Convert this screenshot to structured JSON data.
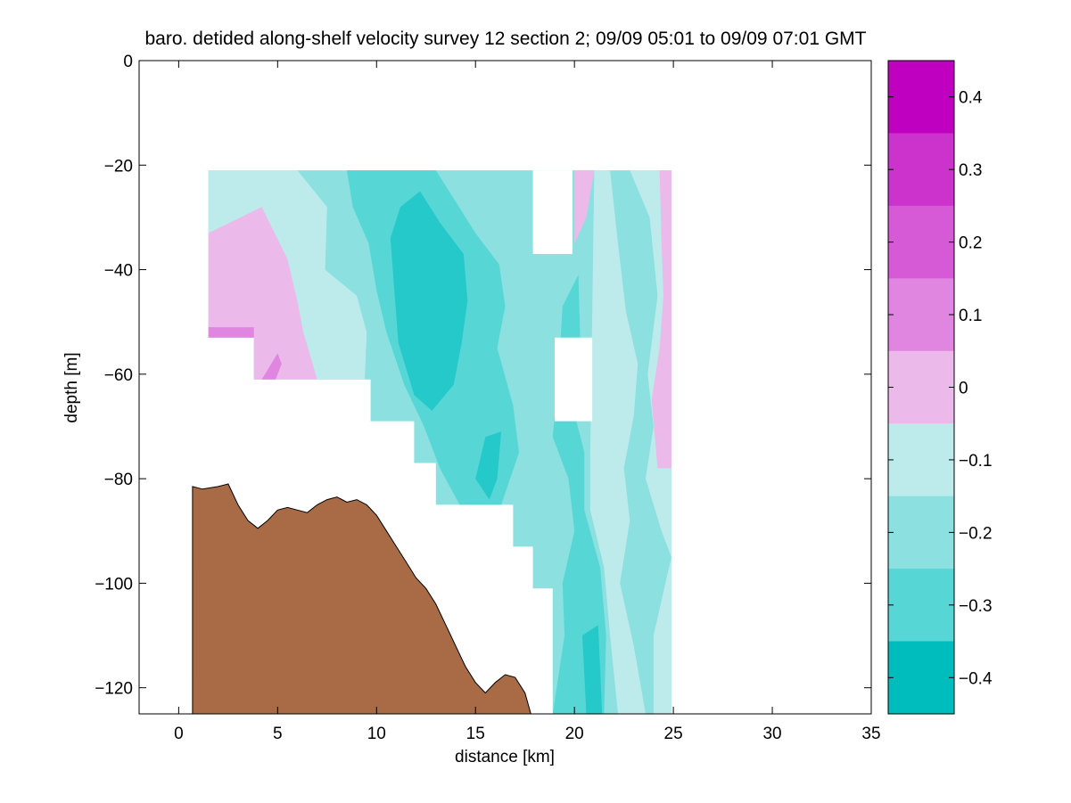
{
  "chart_data": {
    "type": "heatmap",
    "subtype": "filled-contour section",
    "title": "baro. detided along-shelf velocity survey 12 section 2; 09/09 05:01 to 09/09 07:01 GMT",
    "xlabel": "distance [km]",
    "ylabel": "depth [m]",
    "xlim": [
      -2,
      35
    ],
    "ylim": [
      -125,
      0
    ],
    "xticks": [
      0,
      5,
      10,
      15,
      20,
      25,
      30,
      35
    ],
    "yticks": [
      0,
      -20,
      -40,
      -60,
      -80,
      -100,
      -120
    ],
    "colorbar": {
      "ticks": [
        0.4,
        0.3,
        0.2,
        0.1,
        0,
        -0.1,
        -0.2,
        -0.3,
        -0.4
      ],
      "range": [
        -0.45,
        0.45
      ],
      "levels": [
        {
          "from": 0.35,
          "to": 0.45,
          "color": "#c000c0"
        },
        {
          "from": 0.25,
          "to": 0.35,
          "color": "#cc33cc"
        },
        {
          "from": 0.15,
          "to": 0.25,
          "color": "#d65ad6"
        },
        {
          "from": 0.05,
          "to": 0.15,
          "color": "#e085e0"
        },
        {
          "from": -0.05,
          "to": 0.05,
          "color": "#ebbaeb"
        },
        {
          "from": -0.15,
          "to": -0.05,
          "color": "#bdebeb"
        },
        {
          "from": -0.25,
          "to": -0.15,
          "color": "#8ce0e0"
        },
        {
          "from": -0.35,
          "to": -0.25,
          "color": "#57d6d6"
        },
        {
          "from": -0.45,
          "to": -0.35,
          "color": "#26c9c9"
        }
      ],
      "bottom_color": "#00bdbd"
    },
    "regions": [
      {
        "name": "base-band",
        "value": -0.2,
        "poly": [
          [
            1.5,
            -21
          ],
          [
            24.9,
            -21
          ],
          [
            24.9,
            -125
          ],
          [
            18.9,
            -125
          ],
          [
            18.9,
            -101
          ],
          [
            17.9,
            -101
          ],
          [
            17.9,
            -93
          ],
          [
            16.9,
            -93
          ],
          [
            16.9,
            -85
          ],
          [
            13,
            -85
          ],
          [
            13,
            -77
          ],
          [
            11.9,
            -77
          ],
          [
            11.9,
            -69
          ],
          [
            9.7,
            -69
          ],
          [
            9.7,
            -61
          ],
          [
            3.8,
            -61
          ],
          [
            3.8,
            -53
          ],
          [
            1.5,
            -53
          ]
        ]
      },
      {
        "name": "west-upper-pale",
        "value": -0.1,
        "poly": [
          [
            1.5,
            -21
          ],
          [
            6,
            -21
          ],
          [
            7.5,
            -28
          ],
          [
            7.4,
            -40
          ],
          [
            9,
            -45
          ],
          [
            9.5,
            -52
          ],
          [
            9.4,
            -61
          ],
          [
            3.8,
            -61
          ],
          [
            3.8,
            -53
          ],
          [
            1.5,
            -53
          ]
        ]
      },
      {
        "name": "west-core",
        "value": -0.3,
        "poly": [
          [
            8.5,
            -21
          ],
          [
            13,
            -21
          ],
          [
            14,
            -27
          ],
          [
            15,
            -33
          ],
          [
            16.2,
            -39
          ],
          [
            16.5,
            -47
          ],
          [
            16.1,
            -55
          ],
          [
            16.9,
            -66
          ],
          [
            17.2,
            -75
          ],
          [
            16.3,
            -85
          ],
          [
            14.2,
            -85
          ],
          [
            13.2,
            -78
          ],
          [
            12.4,
            -70
          ],
          [
            11.4,
            -62
          ],
          [
            10.5,
            -52
          ],
          [
            10,
            -44
          ],
          [
            9.6,
            -35
          ],
          [
            8.8,
            -28
          ]
        ]
      },
      {
        "name": "west-deep",
        "value": -0.4,
        "poly": [
          [
            11.2,
            -28
          ],
          [
            12.2,
            -25
          ],
          [
            13.2,
            -31
          ],
          [
            14.4,
            -37
          ],
          [
            14.6,
            -46
          ],
          [
            14.3,
            -54
          ],
          [
            13.9,
            -62
          ],
          [
            12.8,
            -67
          ],
          [
            11.9,
            -64
          ],
          [
            11.1,
            -54
          ],
          [
            10.9,
            -44
          ],
          [
            10.7,
            -34
          ]
        ]
      },
      {
        "name": "west-deep-small",
        "value": -0.4,
        "poly": [
          [
            15.5,
            -72
          ],
          [
            16.3,
            -71
          ],
          [
            16.1,
            -80
          ],
          [
            15.7,
            -84
          ],
          [
            15,
            -80
          ]
        ]
      },
      {
        "name": "west-pink",
        "value": 0.0,
        "poly": [
          [
            1.5,
            -33
          ],
          [
            4.2,
            -28
          ],
          [
            5.5,
            -38
          ],
          [
            6,
            -46
          ],
          [
            6.3,
            -52
          ],
          [
            7,
            -61
          ],
          [
            3.8,
            -61
          ],
          [
            3.8,
            -53
          ],
          [
            1.5,
            -53
          ]
        ]
      },
      {
        "name": "west-magenta",
        "value": 0.1,
        "poly": [
          [
            1.5,
            -51
          ],
          [
            3.8,
            -51
          ],
          [
            3.8,
            -53
          ],
          [
            1.5,
            -53
          ]
        ]
      },
      {
        "name": "west-magenta2",
        "value": 0.1,
        "poly": [
          [
            4.2,
            -61
          ],
          [
            5,
            -56
          ],
          [
            5.2,
            -58
          ],
          [
            4.9,
            -61
          ]
        ]
      },
      {
        "name": "east-core",
        "value": -0.3,
        "poly": [
          [
            19.4,
            -47
          ],
          [
            20.2,
            -41
          ],
          [
            20.3,
            -55
          ],
          [
            19.9,
            -66
          ],
          [
            20.5,
            -75
          ],
          [
            20.5,
            -86
          ],
          [
            21.3,
            -97
          ],
          [
            21.6,
            -110
          ],
          [
            21.5,
            -125
          ],
          [
            18.9,
            -125
          ],
          [
            19.5,
            -110
          ],
          [
            19.4,
            -100
          ],
          [
            20,
            -90
          ],
          [
            19.7,
            -80
          ],
          [
            18.9,
            -72
          ],
          [
            19.2,
            -60
          ]
        ]
      },
      {
        "name": "east-core-deep",
        "value": -0.4,
        "poly": [
          [
            20.4,
            -110
          ],
          [
            21.2,
            -108
          ],
          [
            21.4,
            -125
          ],
          [
            20.6,
            -125
          ]
        ]
      },
      {
        "name": "east-pale",
        "value": -0.1,
        "poly": [
          [
            21,
            -21
          ],
          [
            21.8,
            -21
          ],
          [
            22.2,
            -35
          ],
          [
            22.6,
            -48
          ],
          [
            23.2,
            -58
          ],
          [
            23,
            -68
          ],
          [
            22.5,
            -78
          ],
          [
            22.8,
            -88
          ],
          [
            22.3,
            -100
          ],
          [
            23,
            -112
          ],
          [
            23.6,
            -125
          ],
          [
            22.2,
            -125
          ],
          [
            21.8,
            -110
          ],
          [
            21.5,
            -97
          ],
          [
            20.8,
            -86
          ],
          [
            20.8,
            -75
          ]
        ]
      },
      {
        "name": "east-edge-pale",
        "value": -0.1,
        "poly": [
          [
            22.8,
            -21
          ],
          [
            24.9,
            -21
          ],
          [
            24.9,
            -125
          ],
          [
            24,
            -125
          ],
          [
            24,
            -110
          ],
          [
            24.6,
            -100
          ],
          [
            24.9,
            -95
          ],
          [
            24.4,
            -90
          ],
          [
            23.6,
            -80
          ],
          [
            24,
            -70
          ],
          [
            23.7,
            -60
          ],
          [
            24.2,
            -45
          ],
          [
            23.8,
            -30
          ]
        ]
      },
      {
        "name": "east-pink",
        "value": 0.0,
        "poly": [
          [
            24.3,
            -21
          ],
          [
            24.9,
            -21
          ],
          [
            24.9,
            -78
          ],
          [
            24.2,
            -78
          ],
          [
            23.9,
            -65
          ],
          [
            24.3,
            -55
          ],
          [
            24.5,
            -45
          ],
          [
            24.4,
            -35
          ]
        ]
      },
      {
        "name": "east-pink-top",
        "value": 0.0,
        "poly": [
          [
            20,
            -21
          ],
          [
            21,
            -21
          ],
          [
            20.6,
            -30
          ],
          [
            20,
            -35
          ]
        ]
      }
    ],
    "masks": [
      {
        "name": "gap-top",
        "poly": [
          [
            17.9,
            -21
          ],
          [
            19.9,
            -21
          ],
          [
            19.9,
            -37
          ],
          [
            17.9,
            -37
          ]
        ]
      },
      {
        "name": "gap-mid",
        "poly": [
          [
            19,
            -53
          ],
          [
            20.9,
            -53
          ],
          [
            20.9,
            -69
          ],
          [
            19,
            -69
          ]
        ]
      }
    ],
    "seafloor": {
      "color": "#a86b45",
      "profile": [
        [
          0.7,
          -81.5
        ],
        [
          1.2,
          -82
        ],
        [
          2,
          -81.5
        ],
        [
          2.5,
          -81
        ],
        [
          3,
          -85
        ],
        [
          3.5,
          -88
        ],
        [
          4,
          -89.5
        ],
        [
          4.5,
          -88
        ],
        [
          5,
          -86
        ],
        [
          5.5,
          -85.5
        ],
        [
          6,
          -86
        ],
        [
          6.5,
          -86.5
        ],
        [
          7,
          -85
        ],
        [
          7.5,
          -84
        ],
        [
          8,
          -83.5
        ],
        [
          8.5,
          -84.5
        ],
        [
          9,
          -84
        ],
        [
          9.5,
          -85
        ],
        [
          10,
          -87
        ],
        [
          10.5,
          -90
        ],
        [
          11,
          -93
        ],
        [
          11.5,
          -96
        ],
        [
          12,
          -99
        ],
        [
          12.5,
          -101
        ],
        [
          13,
          -104
        ],
        [
          13.5,
          -108
        ],
        [
          14,
          -112
        ],
        [
          14.5,
          -116
        ],
        [
          15,
          -119
        ],
        [
          15.5,
          -121
        ],
        [
          16,
          -119
        ],
        [
          16.5,
          -117.5
        ],
        [
          17,
          -118
        ],
        [
          17.5,
          -121
        ],
        [
          17.8,
          -125
        ]
      ]
    }
  }
}
